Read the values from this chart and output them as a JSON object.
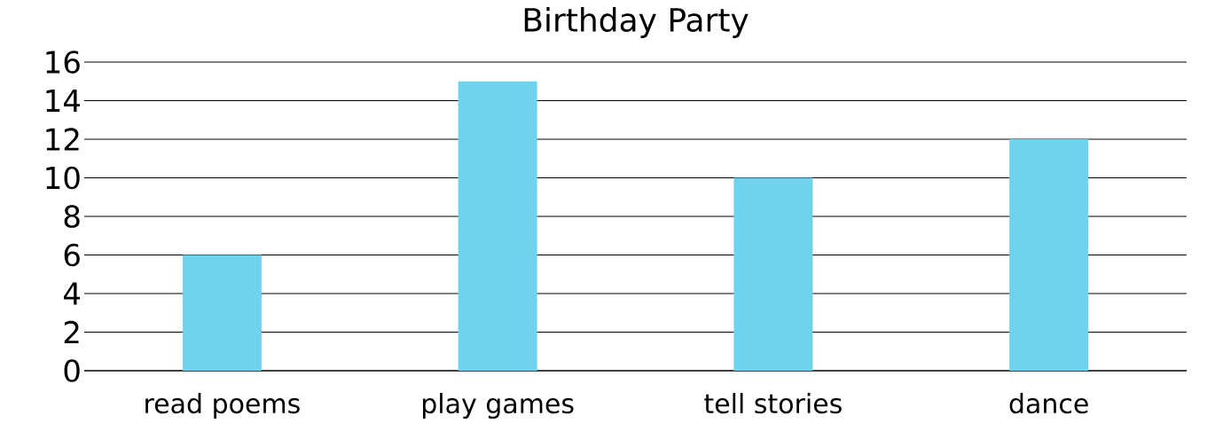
{
  "chart_data": {
    "type": "bar",
    "title": "Birthday Party",
    "categories": [
      "read poems",
      "play games",
      "tell stories",
      "dance"
    ],
    "values": [
      6,
      15,
      10,
      12
    ],
    "color": "#6fd3ee",
    "ylim": [
      0,
      16
    ],
    "yticks": [
      0,
      2,
      4,
      6,
      8,
      10,
      12,
      14,
      16
    ],
    "grid": "y"
  }
}
